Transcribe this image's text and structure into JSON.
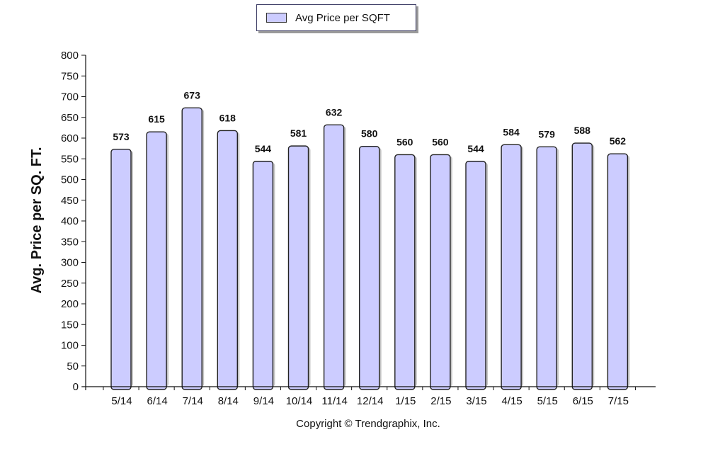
{
  "legend": {
    "label": "Avg Price per SQFT",
    "swatch_color": "#ccccff"
  },
  "chart_data": {
    "type": "bar",
    "title": "",
    "xlabel": "",
    "ylabel": "Avg. Price per SQ. FT.",
    "ylim": [
      0,
      800
    ],
    "yticks": [
      "0",
      "50",
      "100",
      "150",
      "200",
      "250",
      "300",
      "350",
      "400",
      "450",
      "500",
      "550",
      "600",
      "650",
      "700",
      "750",
      "800"
    ],
    "categories": [
      "5/14",
      "6/14",
      "7/14",
      "8/14",
      "9/14",
      "10/14",
      "11/14",
      "12/14",
      "1/15",
      "2/15",
      "3/15",
      "4/15",
      "5/15",
      "6/15",
      "7/15"
    ],
    "series": [
      {
        "name": "Avg Price per SQFT",
        "values": [
          573,
          615,
          673,
          618,
          544,
          581,
          632,
          580,
          560,
          560,
          544,
          584,
          579,
          588,
          562
        ]
      }
    ],
    "data_labels": [
      "573",
      "615",
      "673",
      "618",
      "544",
      "581",
      "632",
      "580",
      "560",
      "560",
      "544",
      "584",
      "579",
      "588",
      "562"
    ],
    "grid": false,
    "legend_position": "top-center",
    "colors": {
      "bar_fill": "#ccccff",
      "bar_stroke": "#222222",
      "bar_shadow": "#c6c6c6"
    }
  },
  "footer": {
    "copyright": "Copyright © Trendgraphix, Inc."
  }
}
